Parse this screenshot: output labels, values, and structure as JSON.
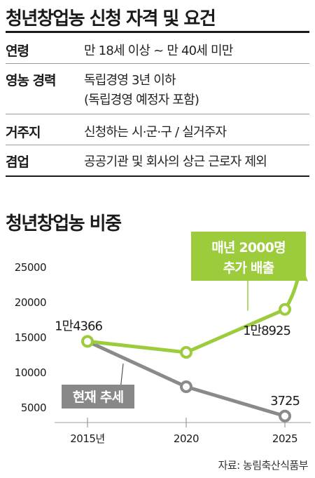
{
  "criteria": {
    "title": "청년창업농 신청 자격 및 요건",
    "rows": [
      {
        "label": "연령",
        "lines": [
          "만 18세 이상 ~ 만 40세 미만"
        ]
      },
      {
        "label": "영농 경력",
        "lines": [
          "독립경영 3년 이하",
          "(독립경영 예정자 포함)"
        ]
      },
      {
        "label": "거주지",
        "lines": [
          "신청하는 시·군·구 / 실거주자"
        ]
      },
      {
        "label": "겸업",
        "lines": [
          "공공기관 및 회사의 상근 근로자 제외"
        ]
      }
    ]
  },
  "chart_section": {
    "title": "청년창업농 비중",
    "source": "자료: 농림축산식품부"
  },
  "colors": {
    "green": "#9ccc3c",
    "gray": "#8a8a8a",
    "text": "#1a1a1a"
  },
  "chart_data": {
    "type": "line",
    "x": [
      "2015년",
      "2020",
      "2025"
    ],
    "yticks": [
      5000,
      10000,
      15000,
      20000,
      25000
    ],
    "ylim": [
      2000,
      27000
    ],
    "series": [
      {
        "name": "매년 2000명 추가 배출",
        "key": "green",
        "values": [
          14366,
          12800,
          18925
        ]
      },
      {
        "name": "현재 추세",
        "key": "gray",
        "values": [
          14366,
          7900,
          3725
        ]
      }
    ],
    "annotations": {
      "start": "1만4366",
      "green_end": "1만8925",
      "gray_end": "3725",
      "green_label_lines": [
        "매년 2000명",
        "추가 배출"
      ],
      "gray_label": "현재 추세"
    },
    "grid": false
  }
}
